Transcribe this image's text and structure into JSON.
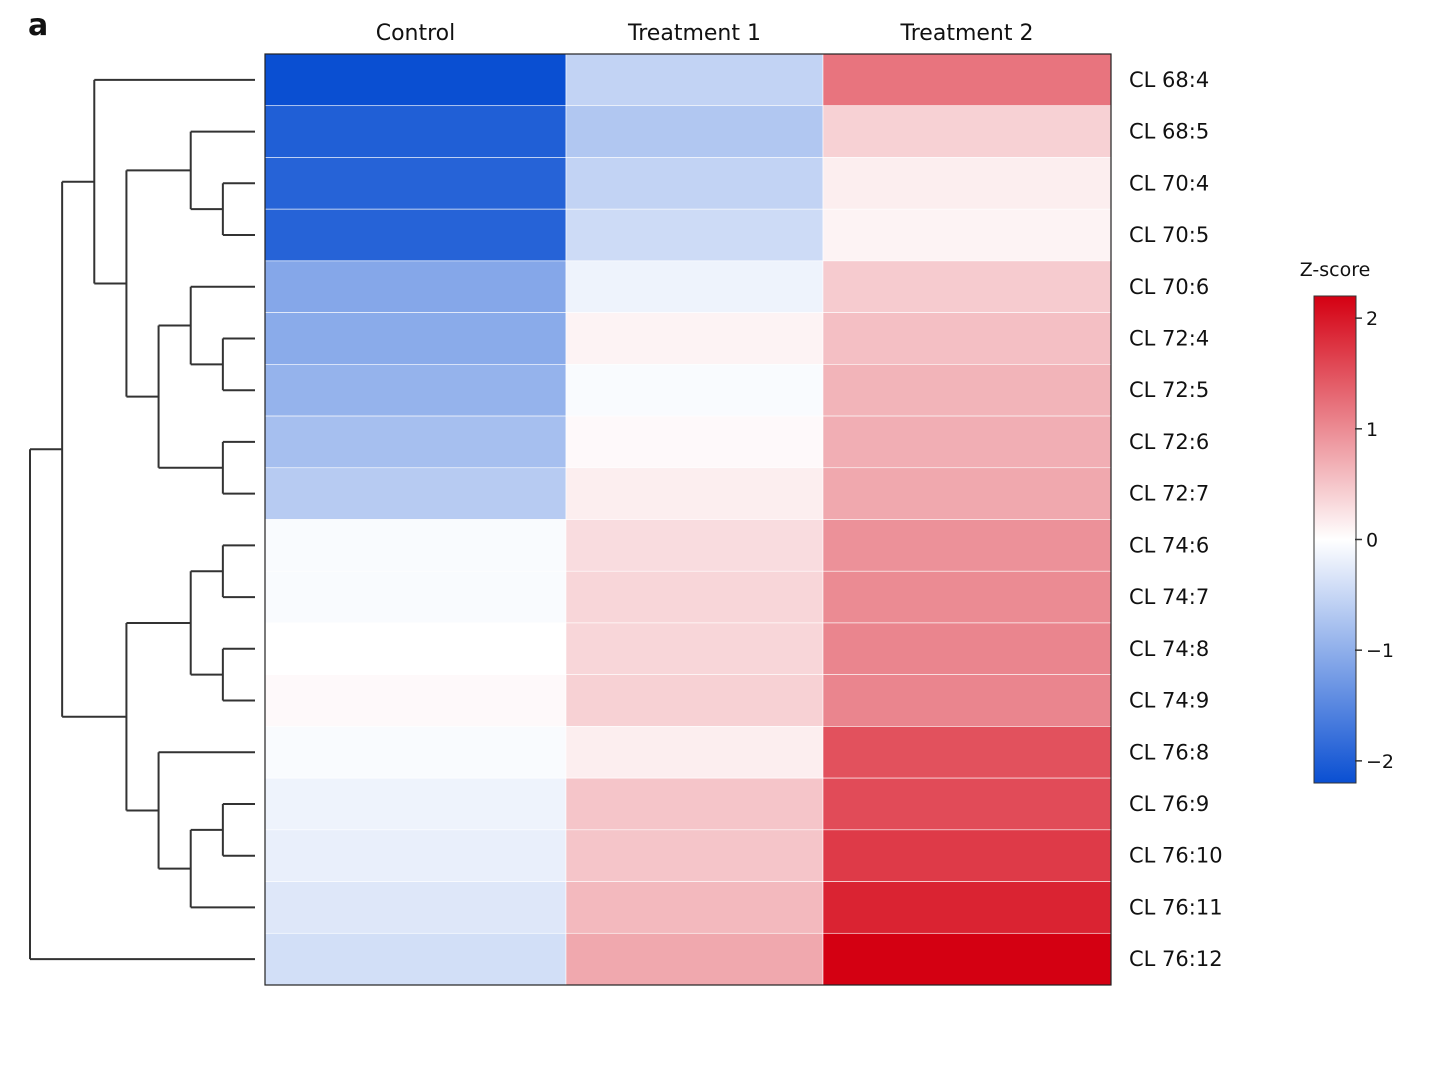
{
  "panel_label": "a",
  "chart_data": {
    "type": "heatmap",
    "columns": [
      "Control",
      "Treatment 1",
      "Treatment 2"
    ],
    "rows": [
      "CL 68:4",
      "CL 68:5",
      "CL 70:4",
      "CL 70:5",
      "CL 70:6",
      "CL 72:4",
      "CL 72:5",
      "CL 72:6",
      "CL 72:7",
      "CL 74:6",
      "CL 74:7",
      "CL 74:8",
      "CL 74:9",
      "CL 76:8",
      "CL 76:9",
      "CL 76:10",
      "CL 76:11",
      "CL 76:12"
    ],
    "values": [
      [
        -2.2,
        -0.55,
        1.2
      ],
      [
        -2.0,
        -0.7,
        0.4
      ],
      [
        -1.95,
        -0.55,
        0.15
      ],
      [
        -1.95,
        -0.45,
        0.1
      ],
      [
        -1.1,
        -0.15,
        0.45
      ],
      [
        -1.05,
        0.1,
        0.55
      ],
      [
        -0.95,
        -0.05,
        0.65
      ],
      [
        -0.8,
        0.05,
        0.7
      ],
      [
        -0.65,
        0.15,
        0.75
      ],
      [
        -0.05,
        0.3,
        0.95
      ],
      [
        -0.05,
        0.35,
        1.0
      ],
      [
        0.0,
        0.35,
        1.05
      ],
      [
        0.05,
        0.4,
        1.05
      ],
      [
        -0.05,
        0.15,
        1.5
      ],
      [
        -0.15,
        0.5,
        1.55
      ],
      [
        -0.2,
        0.5,
        1.7
      ],
      [
        -0.3,
        0.6,
        1.9
      ],
      [
        -0.4,
        0.75,
        2.2
      ]
    ],
    "legend": {
      "title": "Z-score",
      "ticks": [
        2,
        1,
        0,
        -1,
        -2
      ],
      "tick_labels": [
        "2",
        "1",
        "0",
        "−1",
        "−2"
      ],
      "range": [
        -2.2,
        2.2
      ],
      "placement": "right"
    },
    "colorscale": {
      "low": "#0a4fd2",
      "mid": "#ffffff",
      "high": "#d40012"
    },
    "row_dendrogram": {
      "placement": "left",
      "tree": [
        [
          [
            0,
            [
              [
                1,
                [
                  2,
                  3
                ]
              ],
              [
                [
                  4,
                  [
                    5,
                    6
                  ]
                ],
                [
                  7,
                  8
                ]
              ]
            ]
          ],
          [
            [
              [
                9,
                10
              ],
              [
                11,
                12
              ]
            ],
            [
              13,
              [
                [
                  14,
                  15
                ],
                16
              ]
            ]
          ]
        ],
        17
      ]
    }
  }
}
